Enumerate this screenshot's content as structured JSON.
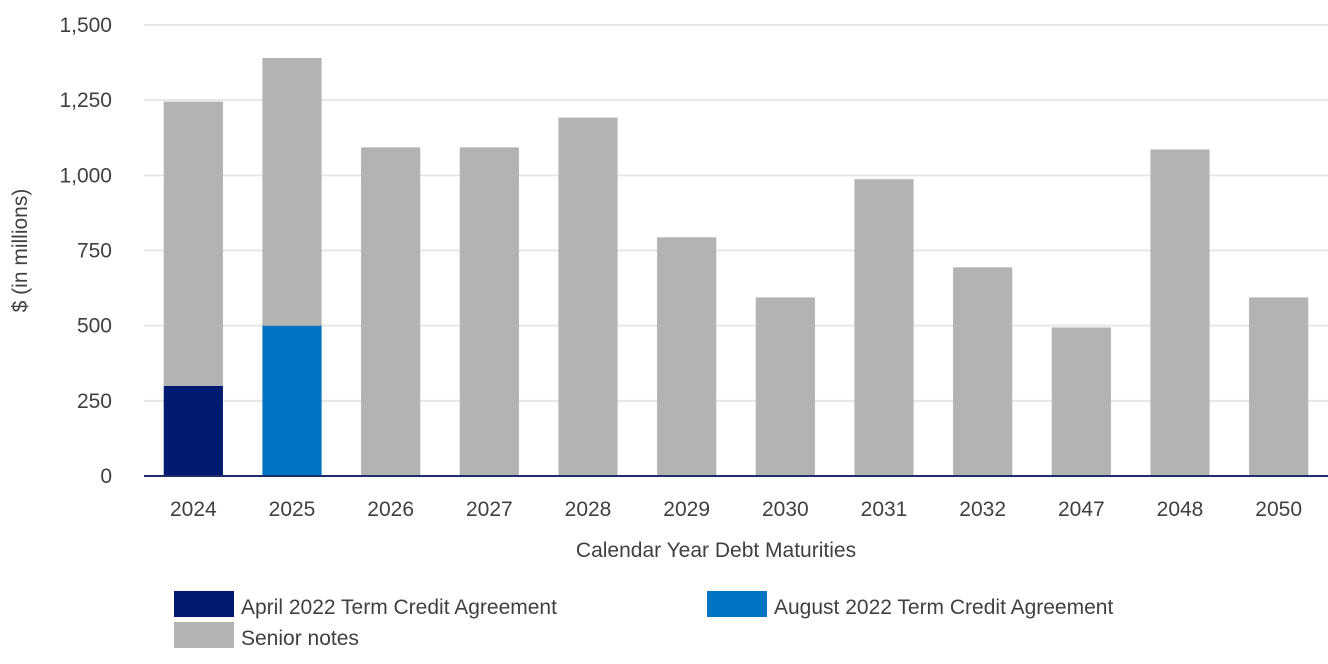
{
  "chart_data": {
    "type": "bar",
    "stacked": true,
    "title": "",
    "xlabel": "Calendar Year Debt Maturities",
    "ylabel": "$ (in millions)",
    "ylim": [
      0,
      1500
    ],
    "yticks": [
      0,
      250,
      500,
      750,
      1000,
      1250,
      1500
    ],
    "ytick_labels": [
      "0",
      "250",
      "500",
      "750",
      "1,000",
      "1,250",
      "1,500"
    ],
    "grid": true,
    "legend_position": "bottom",
    "categories": [
      "2024",
      "2025",
      "2026",
      "2027",
      "2028",
      "2029",
      "2030",
      "2031",
      "2032",
      "2047",
      "2048",
      "2050"
    ],
    "series": [
      {
        "name": "April 2022 Term Credit Agreement",
        "color": "#001a70",
        "values": [
          300,
          0,
          0,
          0,
          0,
          0,
          0,
          0,
          0,
          0,
          0,
          0
        ]
      },
      {
        "name": "August 2022 Term Credit Agreement",
        "color": "#0074c1",
        "values": [
          0,
          500,
          0,
          0,
          0,
          0,
          0,
          0,
          0,
          0,
          0,
          0
        ]
      },
      {
        "name": "Senior notes",
        "color": "#b3b3b3",
        "values": [
          945,
          890,
          1093,
          1093,
          1192,
          794,
          594,
          987,
          694,
          494,
          1086,
          594
        ]
      }
    ],
    "colors": {
      "axis": "#1f2d6b",
      "grid": "#e6e6e6",
      "text": "#404040"
    }
  }
}
